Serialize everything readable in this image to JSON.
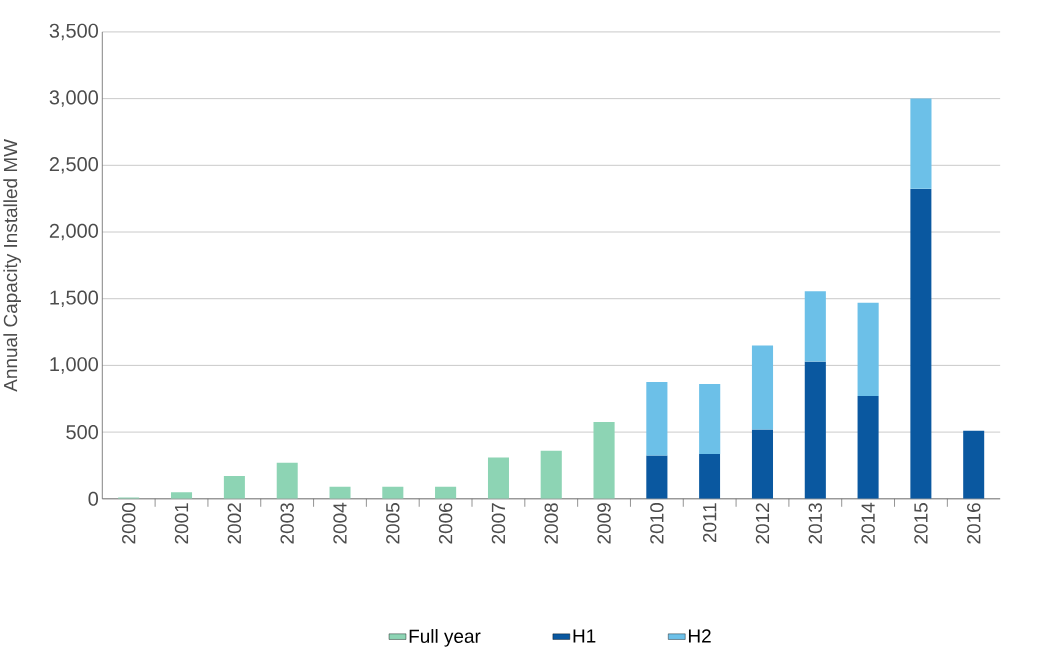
{
  "chart_data": {
    "type": "bar",
    "stacked": true,
    "ylabel": "Annual Capacity Installed MW",
    "categories": [
      "2000",
      "2001",
      "2002",
      "2003",
      "2004",
      "2005",
      "2006",
      "2007",
      "2008",
      "2009",
      "2010",
      "2011",
      "2012",
      "2013",
      "2014",
      "2015",
      "2016"
    ],
    "series": [
      {
        "name": "Full year",
        "color": "#8dd4b4",
        "values": [
          10,
          50,
          170,
          270,
          90,
          90,
          90,
          310,
          360,
          575,
          null,
          null,
          null,
          null,
          null,
          null,
          null
        ]
      },
      {
        "name": "H1",
        "color": "#0a58a0",
        "values": [
          null,
          null,
          null,
          null,
          null,
          null,
          null,
          null,
          null,
          null,
          325,
          335,
          520,
          1030,
          770,
          2325,
          510
        ]
      },
      {
        "name": "H2",
        "color": "#6cc0e8",
        "values": [
          null,
          null,
          null,
          null,
          null,
          null,
          null,
          null,
          null,
          null,
          550,
          525,
          630,
          525,
          700,
          675,
          null
        ]
      }
    ],
    "ylim": [
      0,
      3500
    ],
    "yticks": [
      0,
      500,
      {
        "value": 1000,
        "label": "1,000"
      },
      {
        "value": 1500,
        "label": "1,500"
      },
      {
        "value": 2000,
        "label": "2,000"
      },
      {
        "value": 2500,
        "label": "2,500"
      },
      {
        "value": 3000,
        "label": "3,000"
      },
      {
        "value": 3500,
        "label": "3,500"
      }
    ],
    "grid": "y",
    "legend": "bottom"
  }
}
